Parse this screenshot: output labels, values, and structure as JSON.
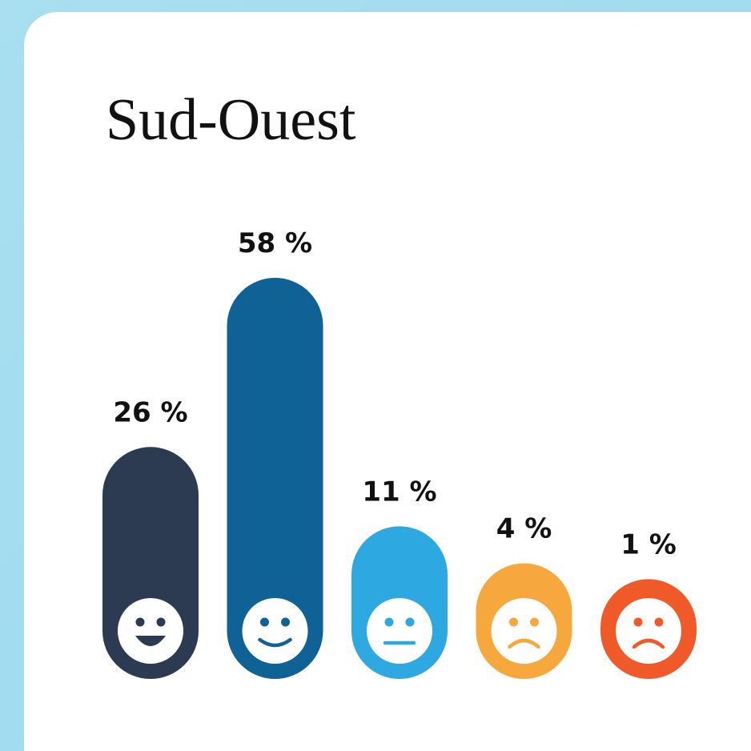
{
  "chart_data": {
    "type": "bar",
    "title": "Sud-Ouest",
    "categories": [
      null,
      null,
      null,
      null,
      null
    ],
    "values": [
      26,
      58,
      11,
      4,
      1
    ],
    "value_labels": [
      "26 %",
      "58 %",
      "11 %",
      "4 %",
      "1 %"
    ],
    "colors": [
      "#2c3a52",
      "#0f6296",
      "#2ea8e0",
      "#f6a83c",
      "#f05a28"
    ]
  }
}
